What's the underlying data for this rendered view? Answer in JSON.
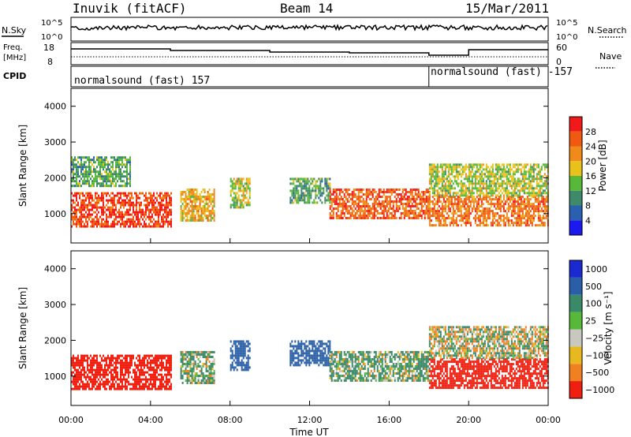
{
  "header": {
    "station": "Inuvik (fitACF)",
    "beam": "Beam 14",
    "date": "15/Mar/2011"
  },
  "nsky_panel": {
    "label": "N.Sky",
    "ticks_left": [
      "10^5",
      "10^0"
    ],
    "label_right": "N.Search",
    "ticks_right": [
      "10^5",
      "10^0"
    ]
  },
  "freq_panel": {
    "label_line1": "Freq.",
    "label_line2": "[MHz]",
    "ticks_left": [
      "18",
      "8"
    ],
    "label_right": "Nave",
    "ticks_right": [
      "60",
      "0"
    ]
  },
  "cpid_panel": {
    "label": "CPID",
    "program_1": "normalsound (fast) 157",
    "program_2": "normalsound (fast) -157"
  },
  "power_panel": {
    "y_label": "Slant Range [km]",
    "y_ticks": [
      "1000",
      "2000",
      "3000",
      "4000"
    ],
    "colorbar_label": "Power [dB]",
    "colorbar_ticks": [
      "4",
      "8",
      "12",
      "16",
      "20",
      "24",
      "28"
    ],
    "colors": [
      "#1a1af0",
      "#2b5fb0",
      "#3f8a6a",
      "#58b83a",
      "#e8c21a",
      "#f08a1a",
      "#f05a10",
      "#f01a1a"
    ]
  },
  "velocity_panel": {
    "y_label": "Slant Range [km]",
    "y_ticks": [
      "1000",
      "2000",
      "3000",
      "4000"
    ],
    "colorbar_label": "Velocity [m s⁻¹]",
    "colorbar_ticks": [
      "1000",
      "500",
      "100",
      "25",
      "−25",
      "−100",
      "−500",
      "−1000"
    ],
    "colors": [
      "#1a2ad0",
      "#2a5fa8",
      "#3a8a6a",
      "#58b83a",
      "#c8c8c0",
      "#e8b820",
      "#f08020",
      "#f02010"
    ]
  },
  "x_axis": {
    "label": "Time UT",
    "ticks": [
      "00:00",
      "04:00",
      "08:00",
      "12:00",
      "16:00",
      "20:00",
      "00:00"
    ]
  },
  "chart_data": {
    "type": "heatmap",
    "x_unit": "hours UT",
    "xlim": [
      0,
      24
    ],
    "y_unit": "km",
    "ylim": [
      180,
      4500
    ],
    "cpid_change_hour": 18.0,
    "power_band_dB": [
      {
        "start": 0.0,
        "end": 5.0,
        "range": [
          650,
          1600
        ],
        "dB": 28
      },
      {
        "start": 0.0,
        "end": 3.0,
        "range": [
          1800,
          2600
        ],
        "dB": 12
      },
      {
        "start": 5.5,
        "end": 7.2,
        "range": [
          800,
          1700
        ],
        "dB": 20
      },
      {
        "start": 8.0,
        "end": 9.0,
        "range": [
          1200,
          2000
        ],
        "dB": 16
      },
      {
        "start": 11.0,
        "end": 13.0,
        "range": [
          1300,
          2000
        ],
        "dB": 12
      },
      {
        "start": 13.0,
        "end": 18.0,
        "range": [
          900,
          1700
        ],
        "dB": 26
      },
      {
        "start": 18.0,
        "end": 24.0,
        "range": [
          700,
          1500
        ],
        "dB": 24
      },
      {
        "start": 18.0,
        "end": 24.0,
        "range": [
          1500,
          2400
        ],
        "dB": 16
      }
    ],
    "velocity_band": [
      {
        "start": 0.0,
        "end": 5.0,
        "range": [
          650,
          1600
        ],
        "v": -500
      },
      {
        "start": 5.5,
        "end": 7.2,
        "range": [
          800,
          1700
        ],
        "v": 100
      },
      {
        "start": 8.0,
        "end": 9.0,
        "range": [
          1200,
          2000
        ],
        "v": 500
      },
      {
        "start": 11.0,
        "end": 13.0,
        "range": [
          1300,
          2000
        ],
        "v": 500
      },
      {
        "start": 13.0,
        "end": 18.0,
        "range": [
          900,
          1700
        ],
        "v": 100
      },
      {
        "start": 18.0,
        "end": 24.0,
        "range": [
          700,
          1500
        ],
        "v": -500
      },
      {
        "start": 18.0,
        "end": 24.0,
        "range": [
          1500,
          2400
        ],
        "v": 0
      }
    ]
  }
}
